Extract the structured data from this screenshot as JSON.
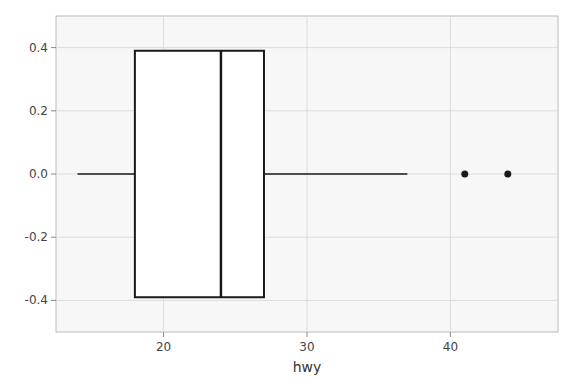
{
  "chart_data": {
    "type": "box",
    "orientation": "horizontal",
    "xlabel": "hwy",
    "q1": 18,
    "q3": 27,
    "median": 24,
    "whisker_low": 14,
    "whisker_high": 37,
    "outliers": [
      41,
      44
    ],
    "outliers_y": [
      0,
      0
    ],
    "position": 0,
    "color": "#1A1A1A",
    "xlim": [
      12.5,
      47.5
    ],
    "xticks": [
      20,
      30,
      40
    ],
    "ylim": [
      -0.5,
      0.5
    ],
    "yticks": [
      -0.4,
      -0.2,
      {
        "value": 0.0,
        "label": "0.0"
      },
      0.2,
      0.4
    ],
    "grid": true
  }
}
